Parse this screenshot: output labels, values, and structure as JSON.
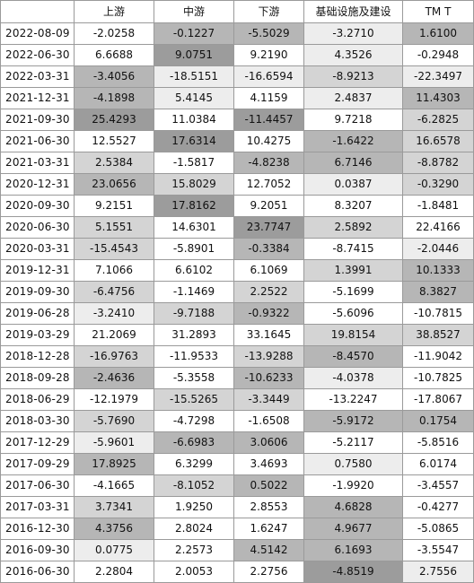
{
  "columns": [
    "上游",
    "中游",
    "下游",
    "基础设施及建设",
    "TM T"
  ],
  "shade_palette": [
    "#ffffff",
    "#ededed",
    "#d4d4d4",
    "#b6b6b6",
    "#9c9c9c"
  ],
  "rows": [
    {
      "date": "2022-08-09",
      "values": [
        "-2.0258",
        "-0.1227",
        "-5.5029",
        "-3.2710",
        "1.6100"
      ],
      "shades": [
        0,
        3,
        3,
        1,
        3
      ]
    },
    {
      "date": "2022-06-30",
      "values": [
        "6.6688",
        "9.0751",
        "9.2190",
        "4.3526",
        "-0.2948"
      ],
      "shades": [
        0,
        4,
        0,
        1,
        0
      ]
    },
    {
      "date": "2022-03-31",
      "values": [
        "-3.4056",
        "-18.5151",
        "-16.6594",
        "-8.9213",
        "-22.3497"
      ],
      "shades": [
        3,
        1,
        1,
        2,
        1
      ]
    },
    {
      "date": "2021-12-31",
      "values": [
        "-4.1898",
        "5.4145",
        "4.1159",
        "2.4837",
        "11.4303"
      ],
      "shades": [
        3,
        1,
        0,
        1,
        3
      ]
    },
    {
      "date": "2021-09-30",
      "values": [
        "25.4293",
        "11.0384",
        "-11.4457",
        "9.7218",
        "-6.2825"
      ],
      "shades": [
        4,
        0,
        4,
        0,
        2
      ]
    },
    {
      "date": "2021-06-30",
      "values": [
        "12.5527",
        "17.6314",
        "10.4275",
        "-1.6422",
        "16.6578"
      ],
      "shades": [
        0,
        4,
        0,
        3,
        2
      ]
    },
    {
      "date": "2021-03-31",
      "values": [
        "2.5384",
        "-1.5817",
        "-4.8238",
        "6.7146",
        "-8.8782"
      ],
      "shades": [
        2,
        0,
        3,
        3,
        2
      ]
    },
    {
      "date": "2020-12-31",
      "values": [
        "23.0656",
        "15.8029",
        "12.7052",
        "0.0387",
        "-0.3290"
      ],
      "shades": [
        3,
        2,
        0,
        1,
        2
      ]
    },
    {
      "date": "2020-09-30",
      "values": [
        "9.2151",
        "17.8162",
        "9.2051",
        "8.3207",
        "-1.8481"
      ],
      "shades": [
        0,
        4,
        0,
        0,
        0
      ]
    },
    {
      "date": "2020-06-30",
      "values": [
        "5.1551",
        "14.6301",
        "23.7747",
        "2.5892",
        "22.4166"
      ],
      "shades": [
        2,
        0,
        4,
        2,
        0
      ]
    },
    {
      "date": "2020-03-31",
      "values": [
        "-15.4543",
        "-5.8901",
        "-0.3384",
        "-8.7415",
        "-2.0446"
      ],
      "shades": [
        2,
        0,
        3,
        0,
        1
      ]
    },
    {
      "date": "2019-12-31",
      "values": [
        "7.1066",
        "6.6102",
        "6.1069",
        "1.3991",
        "10.1333"
      ],
      "shades": [
        0,
        0,
        0,
        2,
        3
      ]
    },
    {
      "date": "2019-09-30",
      "values": [
        "-6.4756",
        "-1.1469",
        "2.2522",
        "-5.1699",
        "8.3827"
      ],
      "shades": [
        2,
        0,
        2,
        0,
        3
      ]
    },
    {
      "date": "2019-06-28",
      "values": [
        "-3.2410",
        "-9.7188",
        "-0.9322",
        "-5.6096",
        "-10.7815"
      ],
      "shades": [
        1,
        2,
        3,
        0,
        0
      ]
    },
    {
      "date": "2019-03-29",
      "values": [
        "21.2069",
        "31.2893",
        "33.1645",
        "19.8154",
        "38.8527"
      ],
      "shades": [
        0,
        0,
        0,
        2,
        2
      ]
    },
    {
      "date": "2018-12-28",
      "values": [
        "-16.9763",
        "-11.9533",
        "-13.9288",
        "-8.4570",
        "-11.9042"
      ],
      "shades": [
        2,
        0,
        2,
        3,
        0
      ]
    },
    {
      "date": "2018-09-28",
      "values": [
        "-2.4636",
        "-5.3558",
        "-10.6233",
        "-4.0378",
        "-10.7825"
      ],
      "shades": [
        3,
        0,
        3,
        1,
        0
      ]
    },
    {
      "date": "2018-06-29",
      "values": [
        "-12.1979",
        "-15.5265",
        "-3.3449",
        "-13.2247",
        "-17.8067"
      ],
      "shades": [
        0,
        2,
        2,
        0,
        0
      ]
    },
    {
      "date": "2018-03-30",
      "values": [
        "-5.7690",
        "-4.7298",
        "-1.6508",
        "-5.9172",
        "0.1754"
      ],
      "shades": [
        2,
        0,
        0,
        3,
        3
      ]
    },
    {
      "date": "2017-12-29",
      "values": [
        "-5.9601",
        "-6.6983",
        "3.0606",
        "-5.2117",
        "-5.8516"
      ],
      "shades": [
        1,
        3,
        3,
        0,
        0
      ]
    },
    {
      "date": "2017-09-29",
      "values": [
        "17.8925",
        "6.3299",
        "3.4693",
        "0.7580",
        "6.0174"
      ],
      "shades": [
        3,
        0,
        0,
        1,
        0
      ]
    },
    {
      "date": "2017-06-30",
      "values": [
        "-4.1665",
        "-8.1052",
        "0.5022",
        "-1.9920",
        "-3.4557"
      ],
      "shades": [
        0,
        2,
        3,
        0,
        0
      ]
    },
    {
      "date": "2017-03-31",
      "values": [
        "3.7341",
        "1.9250",
        "2.8553",
        "4.6828",
        "-0.4277"
      ],
      "shades": [
        2,
        0,
        0,
        3,
        0
      ]
    },
    {
      "date": "2016-12-30",
      "values": [
        "4.3756",
        "2.8024",
        "1.6247",
        "4.9677",
        "-5.0865"
      ],
      "shades": [
        3,
        0,
        0,
        3,
        0
      ]
    },
    {
      "date": "2016-09-30",
      "values": [
        "0.0775",
        "2.2573",
        "4.5142",
        "6.1693",
        "-3.5547"
      ],
      "shades": [
        1,
        0,
        3,
        3,
        0
      ]
    },
    {
      "date": "2016-06-30",
      "values": [
        "2.2804",
        "2.0053",
        "2.2756",
        "-4.8519",
        "2.7556"
      ],
      "shades": [
        0,
        0,
        0,
        4,
        1
      ]
    }
  ]
}
